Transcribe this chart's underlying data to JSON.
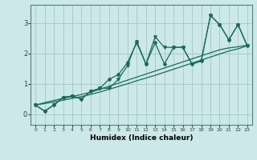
{
  "title": "",
  "xlabel": "Humidex (Indice chaleur)",
  "bg_color": "#cce8e8",
  "grid_color": "#aacccc",
  "line_color": "#1a6b5a",
  "xlim": [
    -0.5,
    23.5
  ],
  "ylim": [
    -0.35,
    3.6
  ],
  "yticks": [
    0,
    1,
    2,
    3
  ],
  "xticks": [
    0,
    1,
    2,
    3,
    4,
    5,
    6,
    7,
    8,
    9,
    10,
    11,
    12,
    13,
    14,
    15,
    16,
    17,
    18,
    19,
    20,
    21,
    22,
    23
  ],
  "x_data": [
    0,
    1,
    2,
    3,
    4,
    5,
    6,
    7,
    8,
    9,
    10,
    11,
    12,
    13,
    14,
    15,
    16,
    17,
    18,
    19,
    20,
    21,
    22,
    23
  ],
  "y_jagged": [
    0.3,
    0.1,
    0.3,
    0.55,
    0.6,
    0.5,
    0.75,
    0.85,
    0.85,
    1.15,
    1.6,
    2.4,
    1.65,
    2.55,
    2.2,
    2.2,
    2.2,
    1.65,
    1.75,
    3.25,
    2.95,
    2.45,
    2.95,
    2.25
  ],
  "y_marked": [
    0.3,
    0.1,
    0.3,
    0.55,
    0.6,
    0.5,
    0.75,
    0.85,
    1.15,
    1.3,
    1.7,
    2.35,
    1.65,
    2.35,
    1.65,
    2.2,
    2.2,
    1.65,
    1.75,
    3.25,
    2.95,
    2.45,
    2.95,
    2.25
  ],
  "y_linear1": [
    0.3,
    0.38,
    0.45,
    0.52,
    0.58,
    0.65,
    0.72,
    0.82,
    0.92,
    1.02,
    1.12,
    1.22,
    1.32,
    1.42,
    1.52,
    1.62,
    1.72,
    1.82,
    1.92,
    2.02,
    2.12,
    2.18,
    2.22,
    2.27
  ],
  "y_linear2": [
    0.3,
    0.35,
    0.4,
    0.46,
    0.52,
    0.58,
    0.65,
    0.73,
    0.82,
    0.91,
    1.0,
    1.1,
    1.19,
    1.28,
    1.38,
    1.48,
    1.58,
    1.68,
    1.78,
    1.88,
    1.98,
    2.08,
    2.15,
    2.25
  ]
}
